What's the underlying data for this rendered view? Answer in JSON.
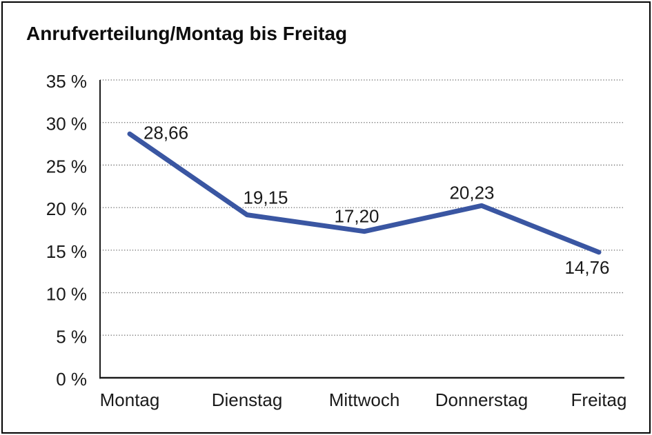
{
  "window": {
    "background": "#ffffff",
    "frame_border_color": "#000000"
  },
  "chart_data": {
    "type": "line",
    "title": "Anrufverteilung/Montag bis Freitag",
    "categories": [
      "Montag",
      "Dienstag",
      "Mittwoch",
      "Donnerstag",
      "Freitag"
    ],
    "series": [
      {
        "values": [
          28.66,
          19.15,
          17.2,
          20.23,
          14.76
        ],
        "point_labels": [
          "28,66",
          "19,15",
          "17,20",
          "20,23",
          "14,76"
        ],
        "color": "#3A56A2"
      }
    ],
    "xlabel": "",
    "ylabel": "",
    "ylim": [
      0,
      35
    ],
    "ytick_values": [
      0,
      5,
      10,
      15,
      20,
      25,
      30,
      35
    ],
    "ytick_labels": [
      "0 %",
      "5 %",
      "10 %",
      "15 %",
      "20 %",
      "25 %",
      "30 %",
      "35 %"
    ],
    "grid": "horizontal-dotted",
    "legend": "none",
    "axis_color": "#1a1a1a",
    "grid_color": "#666666",
    "text_color": "#1a1a1a"
  }
}
